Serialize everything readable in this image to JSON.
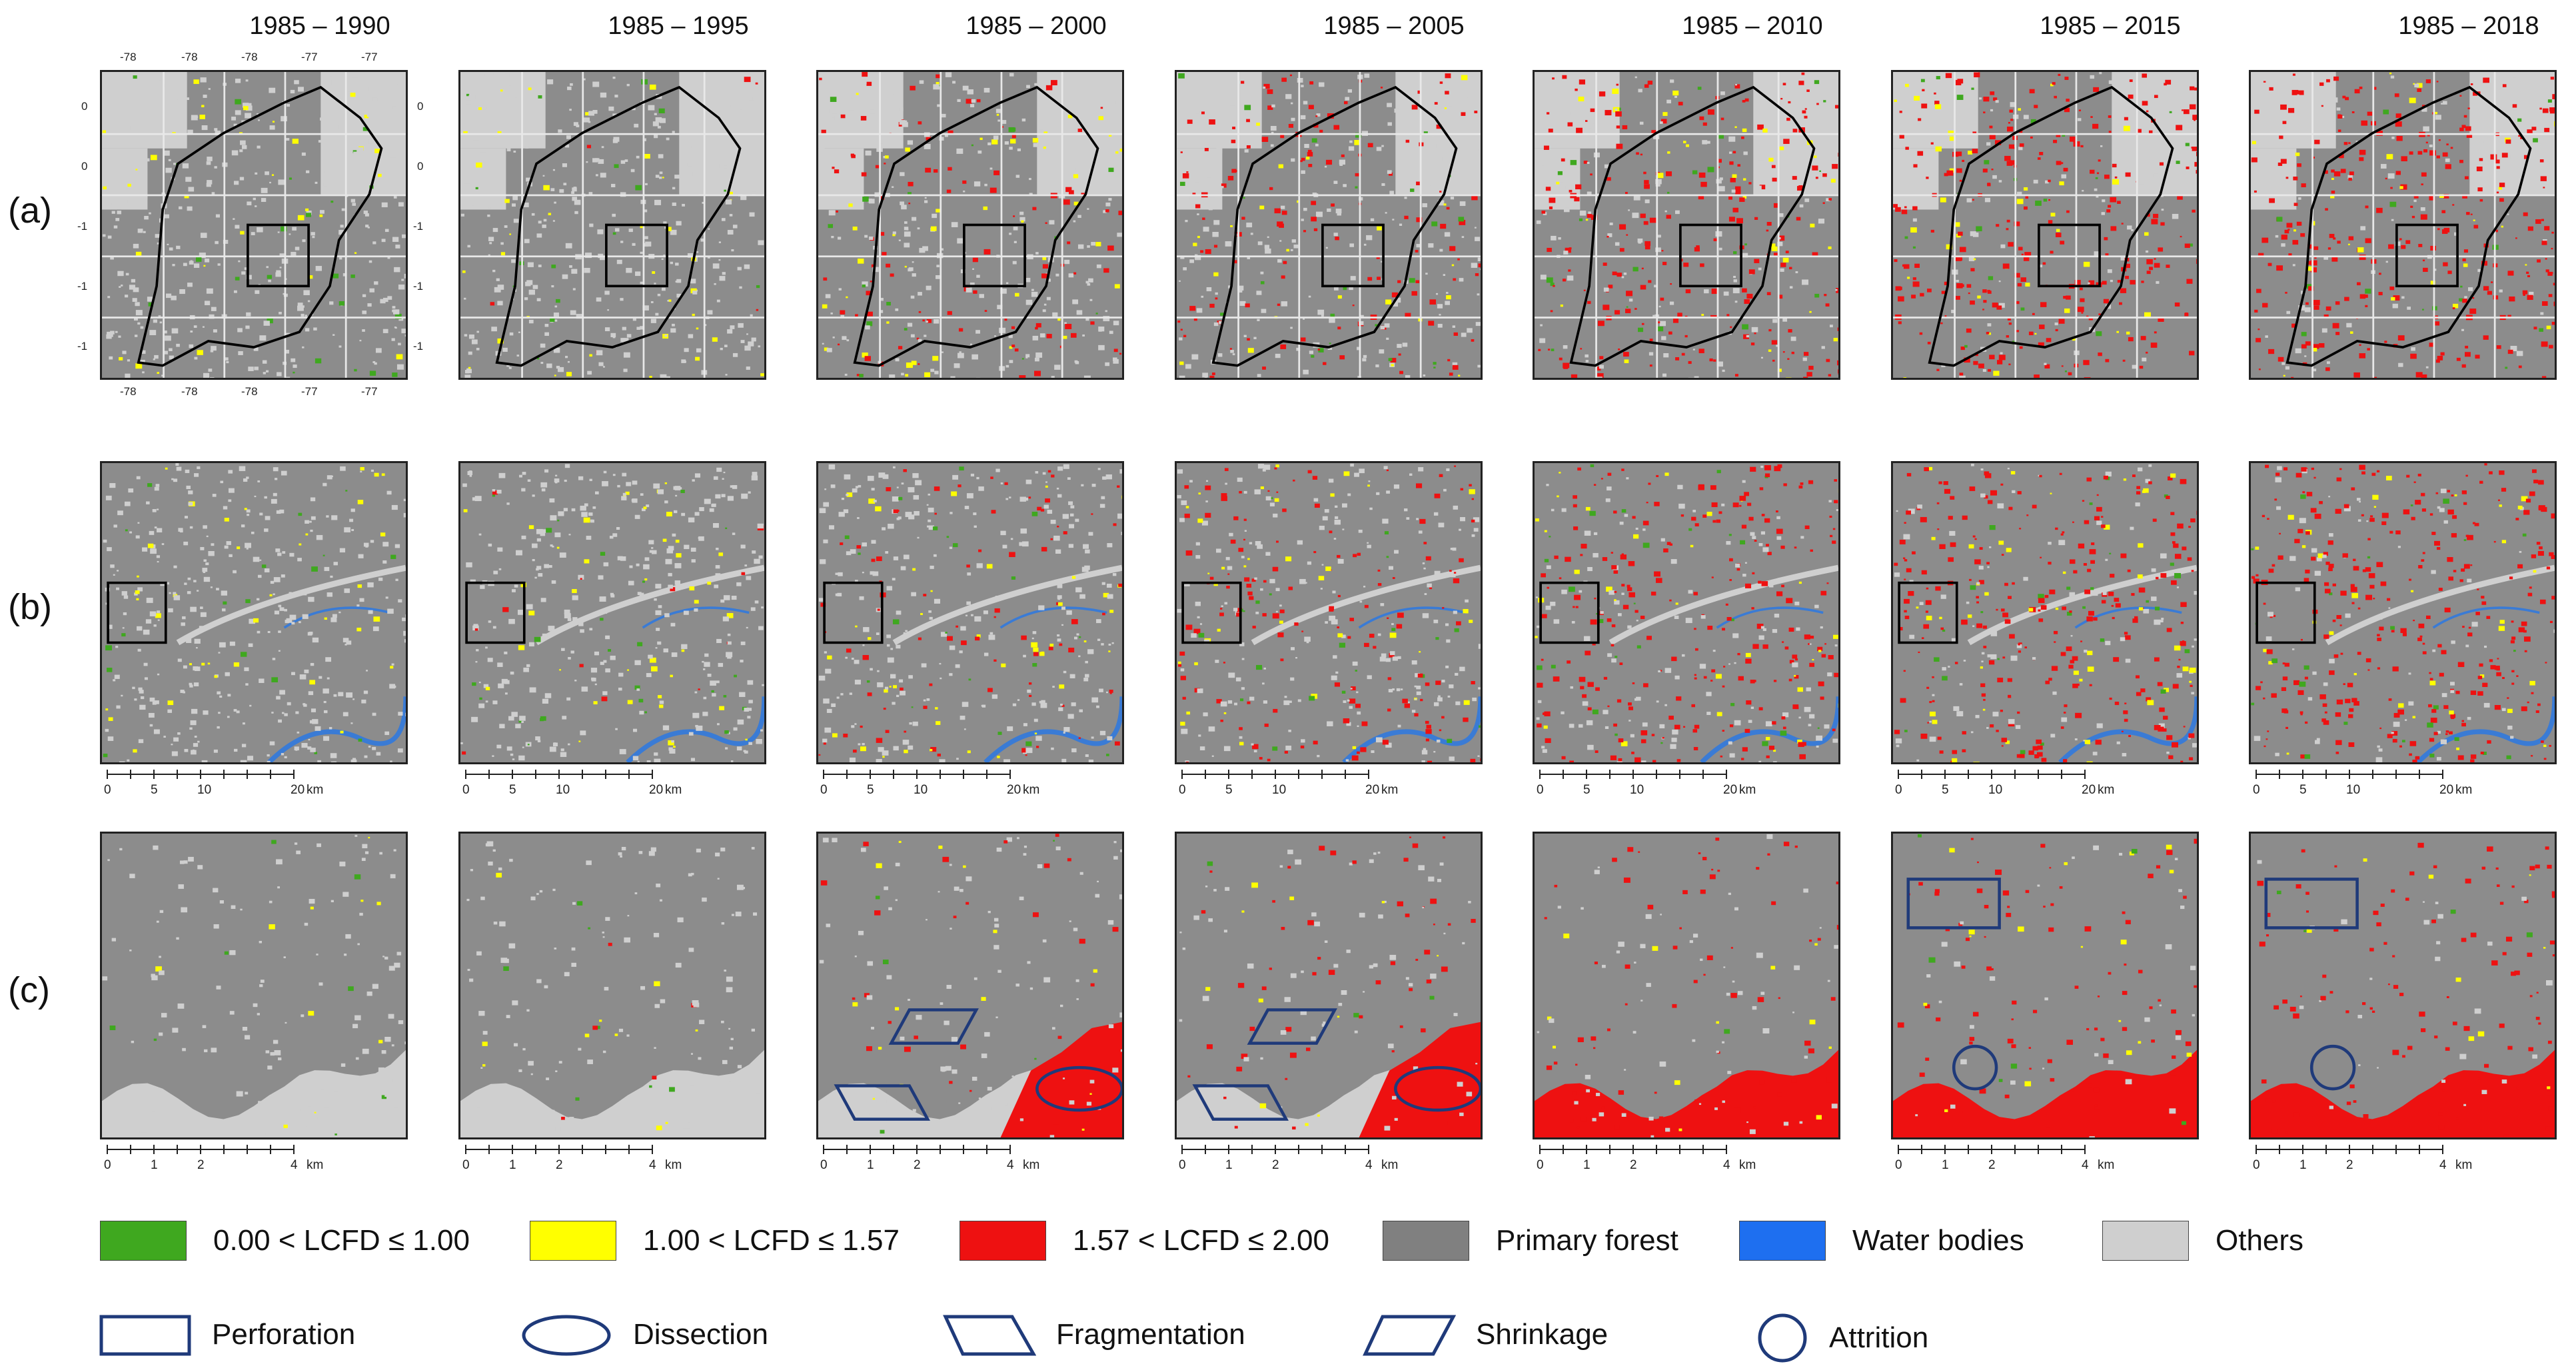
{
  "columns": [
    "1985 – 1990",
    "1985 – 1995",
    "1985 – 2000",
    "1985 – 2005",
    "1985 – 2010",
    "1985 – 2015",
    "1985 – 2018"
  ],
  "row_labels": [
    "(a)",
    "(b)",
    "(c)"
  ],
  "axis_ticks": {
    "top": [
      "-78",
      "-78",
      "-78",
      "-77",
      "-77"
    ],
    "bottom": [
      "-78",
      "-78",
      "-78",
      "-77",
      "-77"
    ],
    "left": [
      "0",
      "0",
      "-1",
      "-1",
      "-1"
    ],
    "right": [
      "0",
      "0",
      "-1",
      "-1",
      "-1"
    ]
  },
  "scale_b": {
    "labels": [
      "0",
      "5",
      "10",
      "20"
    ],
    "unit": "km"
  },
  "scale_c": {
    "labels": [
      "0",
      "1",
      "2",
      "4"
    ],
    "unit": "km"
  },
  "legend": {
    "classes": [
      {
        "label": "0.00 < LCFD ≤ 1.00",
        "color": "#3fa81f",
        "icon": "green-swatch"
      },
      {
        "label": "1.00 < LCFD ≤ 1.57",
        "color": "#ffff00",
        "icon": "yellow-swatch"
      },
      {
        "label": "1.57  < LCFD ≤ 2.00",
        "color": "#ee1111",
        "icon": "red-swatch"
      },
      {
        "label": "Primary forest",
        "color": "#808080",
        "icon": "gray-swatch"
      },
      {
        "label": "Water bodies",
        "color": "#1e6ff0",
        "icon": "blue-swatch"
      },
      {
        "label": "Others",
        "color": "#cfcfcf",
        "icon": "lightgray-swatch"
      }
    ],
    "processes": [
      {
        "label": "Perforation",
        "icon": "rectangle-icon"
      },
      {
        "label": "Dissection",
        "icon": "ellipse-icon"
      },
      {
        "label": "Fragmentation",
        "icon": "trapezoid-icon"
      },
      {
        "label": "Shrinkage",
        "icon": "parallelogram-icon"
      },
      {
        "label": "Attrition",
        "icon": "circle-icon"
      }
    ]
  },
  "colors": {
    "outline": "#1f3a7a",
    "forest": "#8c8c8c",
    "others": "#cfcfcf",
    "water": "#3a7bd5",
    "red": "#ee1111",
    "yellow": "#ffff00",
    "green": "#3fa81f"
  }
}
